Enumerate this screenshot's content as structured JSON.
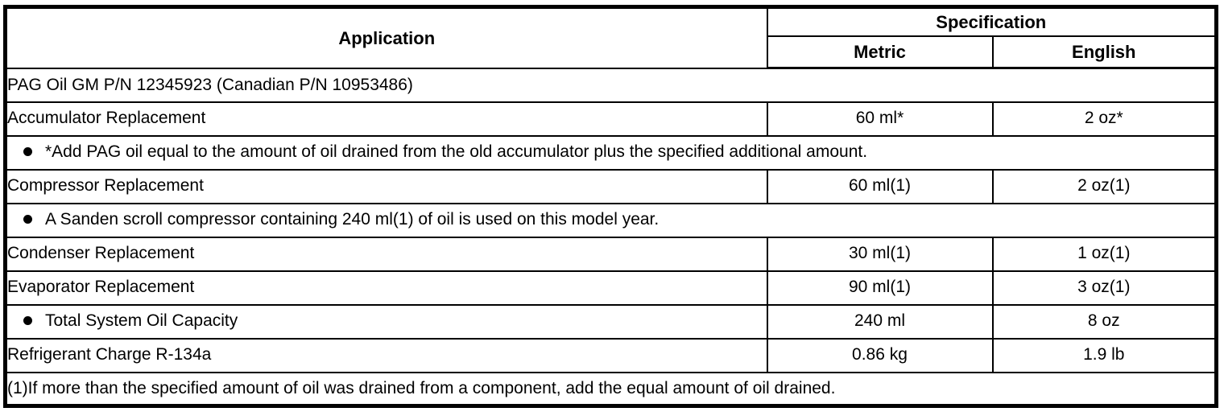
{
  "table": {
    "header": {
      "application": "Application",
      "specification": "Specification",
      "metric": "Metric",
      "english": "English"
    },
    "rows": [
      {
        "application": "PAG Oil GM P/N 12345923 (Canadian P/N 10953486)",
        "span": true,
        "bullet": false
      },
      {
        "application": "Accumulator Replacement",
        "metric": "60 ml*",
        "english": "2 oz*",
        "span": false,
        "bullet": false
      },
      {
        "application": "*Add PAG oil equal to the amount of oil drained from the old accumulator plus the specified additional amount.",
        "span": true,
        "bullet": true
      },
      {
        "application": "Compressor Replacement",
        "metric": "60 ml(1)",
        "english": "2 oz(1)",
        "span": false,
        "bullet": false
      },
      {
        "application": "A Sanden scroll compressor containing 240 ml(1) of oil is used on this model year.",
        "span": true,
        "bullet": true
      },
      {
        "application": "Condenser Replacement",
        "metric": "30 ml(1)",
        "english": "1 oz(1)",
        "span": false,
        "bullet": false
      },
      {
        "application": "Evaporator Replacement",
        "metric": "90 ml(1)",
        "english": "3 oz(1)",
        "span": false,
        "bullet": false
      },
      {
        "application": "Total System Oil Capacity",
        "metric": "240 ml",
        "english": "8 oz",
        "span": false,
        "bullet": true
      },
      {
        "application": "Refrigerant Charge R-134a",
        "metric": "0.86 kg",
        "english": "1.9 lb",
        "span": false,
        "bullet": false
      },
      {
        "application": "(1)If more than the specified amount of oil was drained from a component, add the equal amount of oil drained.",
        "span": true,
        "bullet": false
      }
    ],
    "colors": {
      "border": "#000000",
      "text": "#000000",
      "background": "#ffffff"
    }
  }
}
